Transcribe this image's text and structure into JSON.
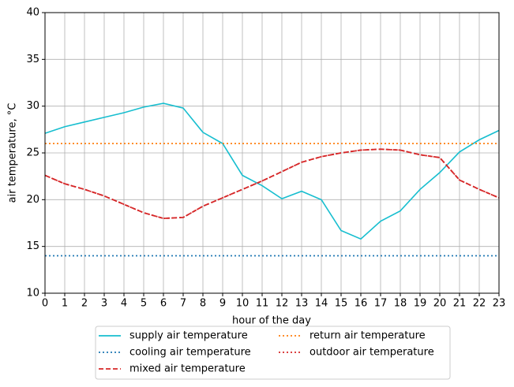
{
  "chart_data": {
    "type": "line",
    "xlabel": "hour of the day",
    "ylabel": "air temperature, °C",
    "x": [
      0,
      1,
      2,
      3,
      4,
      5,
      6,
      7,
      8,
      9,
      10,
      11,
      12,
      13,
      14,
      15,
      16,
      17,
      18,
      19,
      20,
      21,
      22,
      23
    ],
    "xlim": [
      0,
      23
    ],
    "xticks": [
      0,
      1,
      2,
      3,
      4,
      5,
      6,
      7,
      8,
      9,
      10,
      11,
      12,
      13,
      14,
      15,
      16,
      17,
      18,
      19,
      20,
      21,
      22,
      23
    ],
    "ylim": [
      10,
      40
    ],
    "yticks": [
      10,
      15,
      20,
      25,
      30,
      35,
      40
    ],
    "grid": true,
    "legend": "below",
    "series": [
      {
        "name": "supply air temperature",
        "color": "#17becf",
        "linestyle": "solid",
        "values": [
          27.1,
          27.8,
          28.3,
          28.8,
          29.3,
          29.9,
          30.3,
          29.8,
          27.2,
          26.0,
          22.6,
          21.5,
          20.1,
          20.9,
          20.0,
          16.7,
          15.8,
          17.7,
          18.8,
          21.1,
          22.9,
          25.1,
          26.4,
          27.4
        ]
      },
      {
        "name": "cooling air temperature",
        "color": "#1f77b4",
        "linestyle": "dotted",
        "values": [
          14,
          14,
          14,
          14,
          14,
          14,
          14,
          14,
          14,
          14,
          14,
          14,
          14,
          14,
          14,
          14,
          14,
          14,
          14,
          14,
          14,
          14,
          14,
          14
        ]
      },
      {
        "name": "mixed air temperature",
        "color": "#d62728",
        "linestyle": "dashed",
        "values": [
          22.6,
          21.7,
          21.1,
          20.4,
          19.5,
          18.6,
          18.0,
          18.1,
          19.3,
          20.2,
          21.1,
          22.0,
          23.0,
          24.0,
          24.6,
          25.0,
          25.3,
          25.4,
          25.3,
          24.8,
          24.5,
          22.1,
          21.1,
          20.2
        ]
      },
      {
        "name": "return air temperature",
        "color": "#ff7f0e",
        "linestyle": "dotted",
        "values": [
          26,
          26,
          26,
          26,
          26,
          26,
          26,
          26,
          26,
          26,
          26,
          26,
          26,
          26,
          26,
          26,
          26,
          26,
          26,
          26,
          26,
          26,
          26,
          26
        ]
      },
      {
        "name": "outdoor air temperature",
        "color": "#d62728",
        "linestyle": "dotted",
        "values": [
          22.6,
          21.7,
          21.1,
          20.4,
          19.5,
          18.6,
          18.0,
          18.1,
          19.3,
          20.2,
          21.1,
          22.0,
          23.0,
          24.0,
          24.6,
          25.0,
          25.3,
          25.4,
          25.3,
          24.8,
          24.5,
          22.1,
          21.1,
          20.2
        ]
      }
    ]
  }
}
